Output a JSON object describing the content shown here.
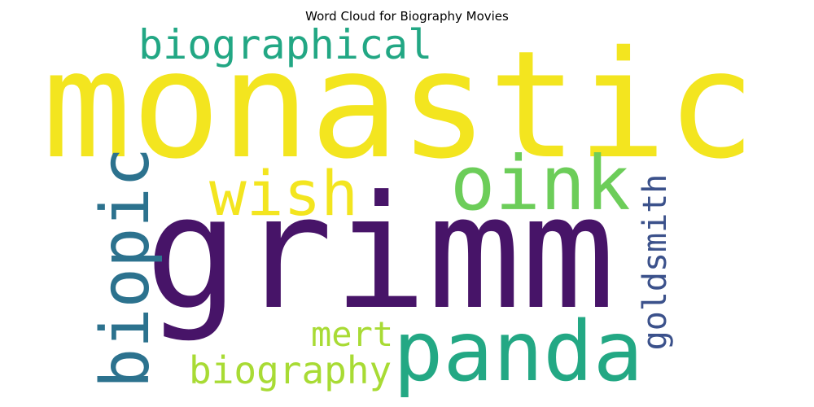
{
  "title": "Word Cloud for Biography Movies",
  "words": [
    {
      "text": "monastic",
      "color": "#f3e51f"
    },
    {
      "text": "grimm",
      "color": "#471468"
    },
    {
      "text": "panda",
      "color": "#23a884"
    },
    {
      "text": "oink",
      "color": "#6ccd59"
    },
    {
      "text": "wish",
      "color": "#f3e51f"
    },
    {
      "text": "biographical",
      "color": "#22a784"
    },
    {
      "text": "biopic",
      "color": "#2c728e"
    },
    {
      "text": "goldsmith",
      "color": "#3b518b"
    },
    {
      "text": "mert",
      "color": "#a8db34"
    },
    {
      "text": "biography",
      "color": "#a8db34"
    }
  ]
}
